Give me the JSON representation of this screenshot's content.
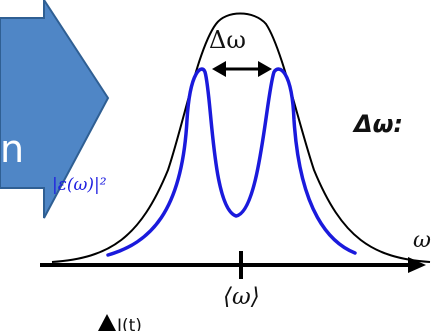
{
  "labels": {
    "delta_omega": "Δω",
    "delta_omega_colon": "Δω:",
    "spectrum": "|ε(ω)|²",
    "omega_axis": "ω",
    "mean_omega": "⟨ω⟩",
    "intensity_time": "I(t)",
    "arrow_fragment": "n"
  },
  "colors": {
    "arrow_fill": "#4f86c6",
    "arrow_stroke": "#2f5f93",
    "envelope": "#000000",
    "double_peak": "#1a1adc",
    "spectrum_label": "#2020e0",
    "text": "#111111"
  }
}
